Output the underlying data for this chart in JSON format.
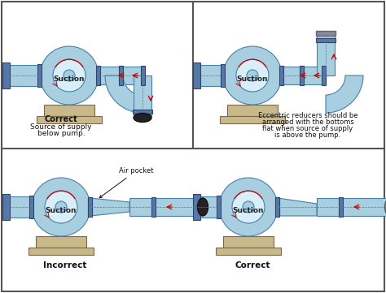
{
  "pipe_fill": "#a8cfe0",
  "pipe_stroke": "#4a7fa5",
  "pump_fill": "#a8cfe0",
  "pump_stroke": "#3a6a8a",
  "base_fill": "#c8b88a",
  "base_stroke": "#7a6a4a",
  "flange_fill": "#5577aa",
  "flange_stroke": "#334466",
  "arrow_color": "#cc0000",
  "white": "#ffffff",
  "dkgray": "#555555",
  "inner_fill": "#d8eef8",
  "label1_bold": "Correct",
  "label1_line2": "Source of supply",
  "label1_line3": "below pump.",
  "label2_line1": "Eccentric reducers should be",
  "label2_line2": "arranged with the bottoms",
  "label2_line3": "flat when source of supply",
  "label2_line4": "is above the pump.",
  "suction": "Suction",
  "air_pocket": "Air pocket",
  "text_correct": "Correct",
  "text_incorrect": "Incorrect",
  "cap_black": "#222222",
  "cap_gray": "#888888"
}
